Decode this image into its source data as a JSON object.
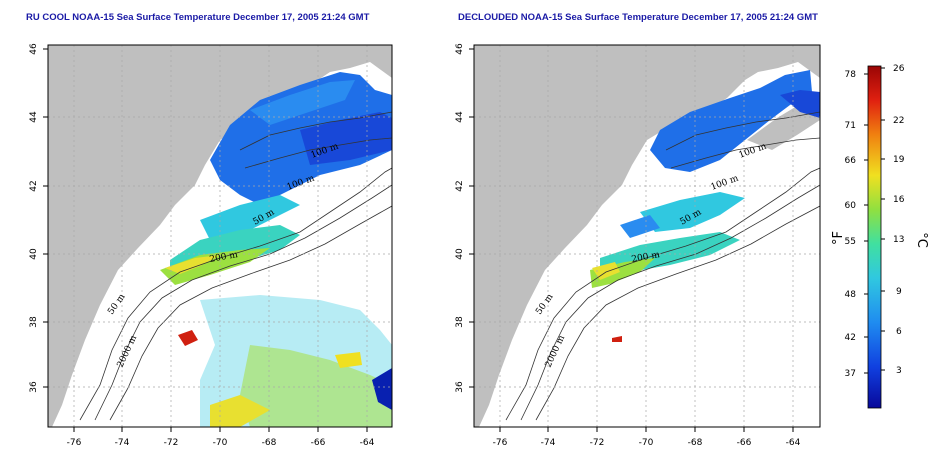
{
  "panels": [
    {
      "title": "RU COOL NOAA-15 Sea Surface Temperature December 17, 2005 21:24 GMT",
      "variant": "raw",
      "contour_labels": [
        "100 m",
        "100 m",
        "50 m",
        "200 m",
        "50 m",
        "2000 m"
      ]
    },
    {
      "title": "DECLOUDED NOAA-15 Sea Surface Temperature December 17, 2005 21:24 GMT",
      "variant": "declouded",
      "contour_labels": [
        "100 m",
        "100 m",
        "50 m",
        "200 m",
        "50 m",
        "2000 m"
      ]
    }
  ],
  "axes": {
    "x_ticks": [
      "-76",
      "-74",
      "-72",
      "-70",
      "-68",
      "-66",
      "-64"
    ],
    "y_ticks": [
      "36",
      "38",
      "40",
      "42",
      "44",
      "46"
    ]
  },
  "colorbar": {
    "fahrenheit_ticks": [
      "78",
      "71",
      "66",
      "60",
      "55",
      "48",
      "42",
      "37"
    ],
    "celsius_ticks": [
      "26",
      "22",
      "19",
      "16",
      "13",
      "9",
      "6",
      "3"
    ],
    "fahrenheit_unit": "°F",
    "celsius_unit": "°C",
    "colors": [
      "#08089a",
      "#1040e0",
      "#1f8cf0",
      "#30c8e0",
      "#40e0a0",
      "#90e040",
      "#f0e020",
      "#f08010",
      "#e02010",
      "#9a0505"
    ]
  },
  "colors": {
    "land": "#bfbfbf",
    "ocean": "#ffffff",
    "grid": "#a9a9a9",
    "title": "#1a1aa6"
  }
}
